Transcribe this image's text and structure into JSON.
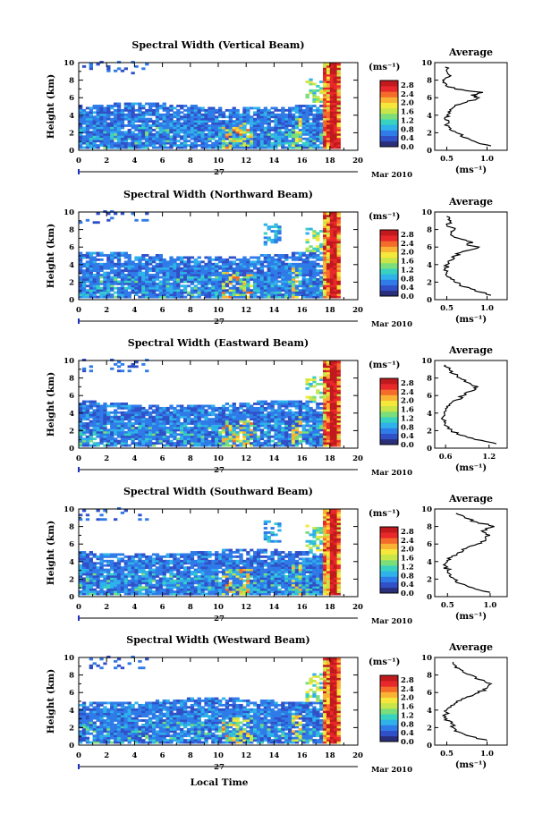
{
  "chart_data": {
    "type": "heatmap",
    "xlabel": "Local Time",
    "x_ticks": [
      "0",
      "2",
      "4",
      "6",
      "8",
      "10",
      "12",
      "14",
      "16",
      "18",
      "20"
    ],
    "xlim": [
      0,
      20
    ],
    "day_label": "27",
    "date_label": "Mar 2010",
    "colorbar": {
      "unit": "(ms⁻¹)",
      "ticks": [
        "0.0",
        "0.4",
        "0.8",
        "1.2",
        "1.6",
        "2.0",
        "2.4",
        "2.8"
      ],
      "range": [
        0,
        3.0
      ],
      "colors": [
        "#2a2f7a",
        "#3050c8",
        "#2f7be8",
        "#2fb1ea",
        "#39d1c0",
        "#7ade7a",
        "#c8e64a",
        "#f5e83a",
        "#f9b233",
        "#f46b2a",
        "#e8282a",
        "#c01a1e"
      ]
    },
    "panels": [
      {
        "title": "Spectral Width (Vertical Beam)",
        "ylabel": "Height (km)",
        "y_ticks": [
          "0",
          "2",
          "4",
          "6",
          "8",
          "10"
        ],
        "ylim": [
          0,
          10
        ],
        "profile": {
          "title": "Average",
          "xlabel": "(ms⁻¹)",
          "x_ticks": [
            "0.5",
            "1.0"
          ],
          "xlim": [
            0.35,
            1.25
          ],
          "heights": [
            0.5,
            1,
            1.5,
            2,
            2.5,
            3,
            3.5,
            4,
            4.5,
            5,
            5.5,
            6,
            6.3,
            6.6,
            7,
            7.5,
            8,
            8.5,
            9,
            9.5
          ],
          "values": [
            1.05,
            0.85,
            0.7,
            0.62,
            0.55,
            0.5,
            0.48,
            0.5,
            0.55,
            0.6,
            0.75,
            0.9,
            0.8,
            0.95,
            0.6,
            0.5,
            0.45,
            0.55,
            0.5,
            0.48
          ]
        }
      },
      {
        "title": "Spectral Width (Northward Beam)",
        "ylabel": "Height (km)",
        "y_ticks": [
          "0",
          "2",
          "4",
          "6",
          "8",
          "10"
        ],
        "ylim": [
          0,
          10
        ],
        "profile": {
          "title": "Average",
          "xlabel": "(ms⁻¹)",
          "x_ticks": [
            "0.5",
            "1.0"
          ],
          "xlim": [
            0.35,
            1.25
          ],
          "heights": [
            0.5,
            1,
            1.5,
            2,
            2.5,
            3,
            3.5,
            4,
            4.5,
            5,
            5.5,
            6,
            6.3,
            6.6,
            7,
            7.5,
            8,
            8.5,
            9,
            9.5
          ],
          "values": [
            1.05,
            0.85,
            0.7,
            0.6,
            0.55,
            0.5,
            0.48,
            0.5,
            0.55,
            0.6,
            0.7,
            0.9,
            0.75,
            0.8,
            0.65,
            0.55,
            0.6,
            0.5,
            0.55,
            0.5
          ]
        }
      },
      {
        "title": "Spectral Width (Eastward Beam)",
        "ylabel": "Height (km)",
        "y_ticks": [
          "0",
          "2",
          "4",
          "6",
          "8",
          "10"
        ],
        "ylim": [
          0,
          10
        ],
        "profile": {
          "title": "Average",
          "xlabel": "(ms⁻¹)",
          "x_ticks": [
            "0.6",
            "1.2"
          ],
          "xlim": [
            0.45,
            1.45
          ],
          "heights": [
            0.5,
            1,
            1.5,
            2,
            2.5,
            3,
            3.5,
            4,
            4.5,
            5,
            5.5,
            6,
            6.5,
            7,
            7.5,
            8,
            8.5,
            9,
            9.5
          ],
          "values": [
            1.3,
            1.0,
            0.8,
            0.68,
            0.62,
            0.58,
            0.56,
            0.58,
            0.6,
            0.65,
            0.75,
            0.85,
            0.95,
            1.05,
            0.9,
            0.8,
            0.7,
            0.65,
            0.6
          ]
        }
      },
      {
        "title": "Spectral Width (Southward Beam)",
        "ylabel": "Height (km)",
        "y_ticks": [
          "0",
          "2",
          "4",
          "6",
          "8",
          "10"
        ],
        "ylim": [
          0,
          10
        ],
        "profile": {
          "title": "Average",
          "xlabel": "(ms⁻¹)",
          "x_ticks": [
            "0.5",
            "1.0"
          ],
          "xlim": [
            0.35,
            1.2
          ],
          "heights": [
            0.5,
            1,
            1.5,
            2,
            2.5,
            3,
            3.5,
            4,
            4.5,
            5,
            5.5,
            6,
            6.5,
            7,
            7.5,
            8,
            8.5,
            9,
            9.5
          ],
          "values": [
            1.0,
            0.8,
            0.65,
            0.58,
            0.54,
            0.5,
            0.48,
            0.5,
            0.55,
            0.62,
            0.72,
            0.85,
            0.95,
            1.0,
            0.9,
            1.05,
            0.85,
            0.7,
            0.6
          ]
        }
      },
      {
        "title": "Spectral Width (Westward Beam)",
        "ylabel": "Height (km)",
        "y_ticks": [
          "0",
          "2",
          "4",
          "6",
          "8",
          "10"
        ],
        "ylim": [
          0,
          10
        ],
        "profile": {
          "title": "Average",
          "xlabel": "(ms⁻¹)",
          "x_ticks": [
            "0.5",
            "1.0"
          ],
          "xlim": [
            0.35,
            1.25
          ],
          "heights": [
            0.5,
            1,
            1.5,
            2,
            2.5,
            3,
            3.5,
            4,
            4.5,
            5,
            5.5,
            6,
            6.5,
            7,
            7.5,
            8,
            8.5,
            9,
            9.5
          ],
          "values": [
            1.0,
            0.8,
            0.65,
            0.58,
            0.55,
            0.5,
            0.48,
            0.5,
            0.55,
            0.62,
            0.75,
            0.9,
            1.0,
            1.05,
            0.9,
            0.8,
            0.7,
            0.62,
            0.58
          ]
        }
      }
    ]
  }
}
